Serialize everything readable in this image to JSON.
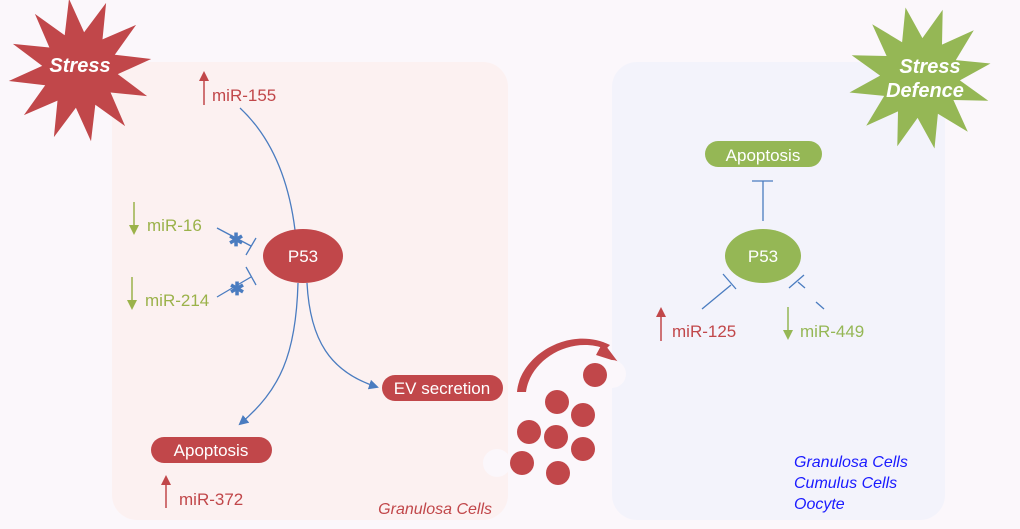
{
  "colors": {
    "stress_red": "#c1474a",
    "defence_green": "#95b755",
    "inhibit_blue": "#4a7cc0",
    "down_green": "#9bb24a",
    "cell_blue": "#1a1aff"
  },
  "left": {
    "stress_label": "Stress",
    "p53": "P53",
    "mirs": [
      {
        "label": "miR-155",
        "direction": "up"
      },
      {
        "label": "miR-16",
        "direction": "down"
      },
      {
        "label": "miR-214",
        "direction": "down"
      },
      {
        "label": "miR-372",
        "direction": "up"
      }
    ],
    "ev_secretion": "EV secretion",
    "apoptosis": "Apoptosis",
    "cell_label": "Granulosa Cells"
  },
  "right": {
    "stress_label_1": "Stress",
    "stress_label_2": "Defence",
    "apoptosis": "Apoptosis",
    "p53": "P53",
    "mirs": [
      {
        "label": "miR-125",
        "direction": "up"
      },
      {
        "label": "miR-449",
        "direction": "down"
      }
    ],
    "cell_labels": [
      "Granulosa Cells",
      "Cumulus Cells",
      "Oocyte"
    ]
  }
}
